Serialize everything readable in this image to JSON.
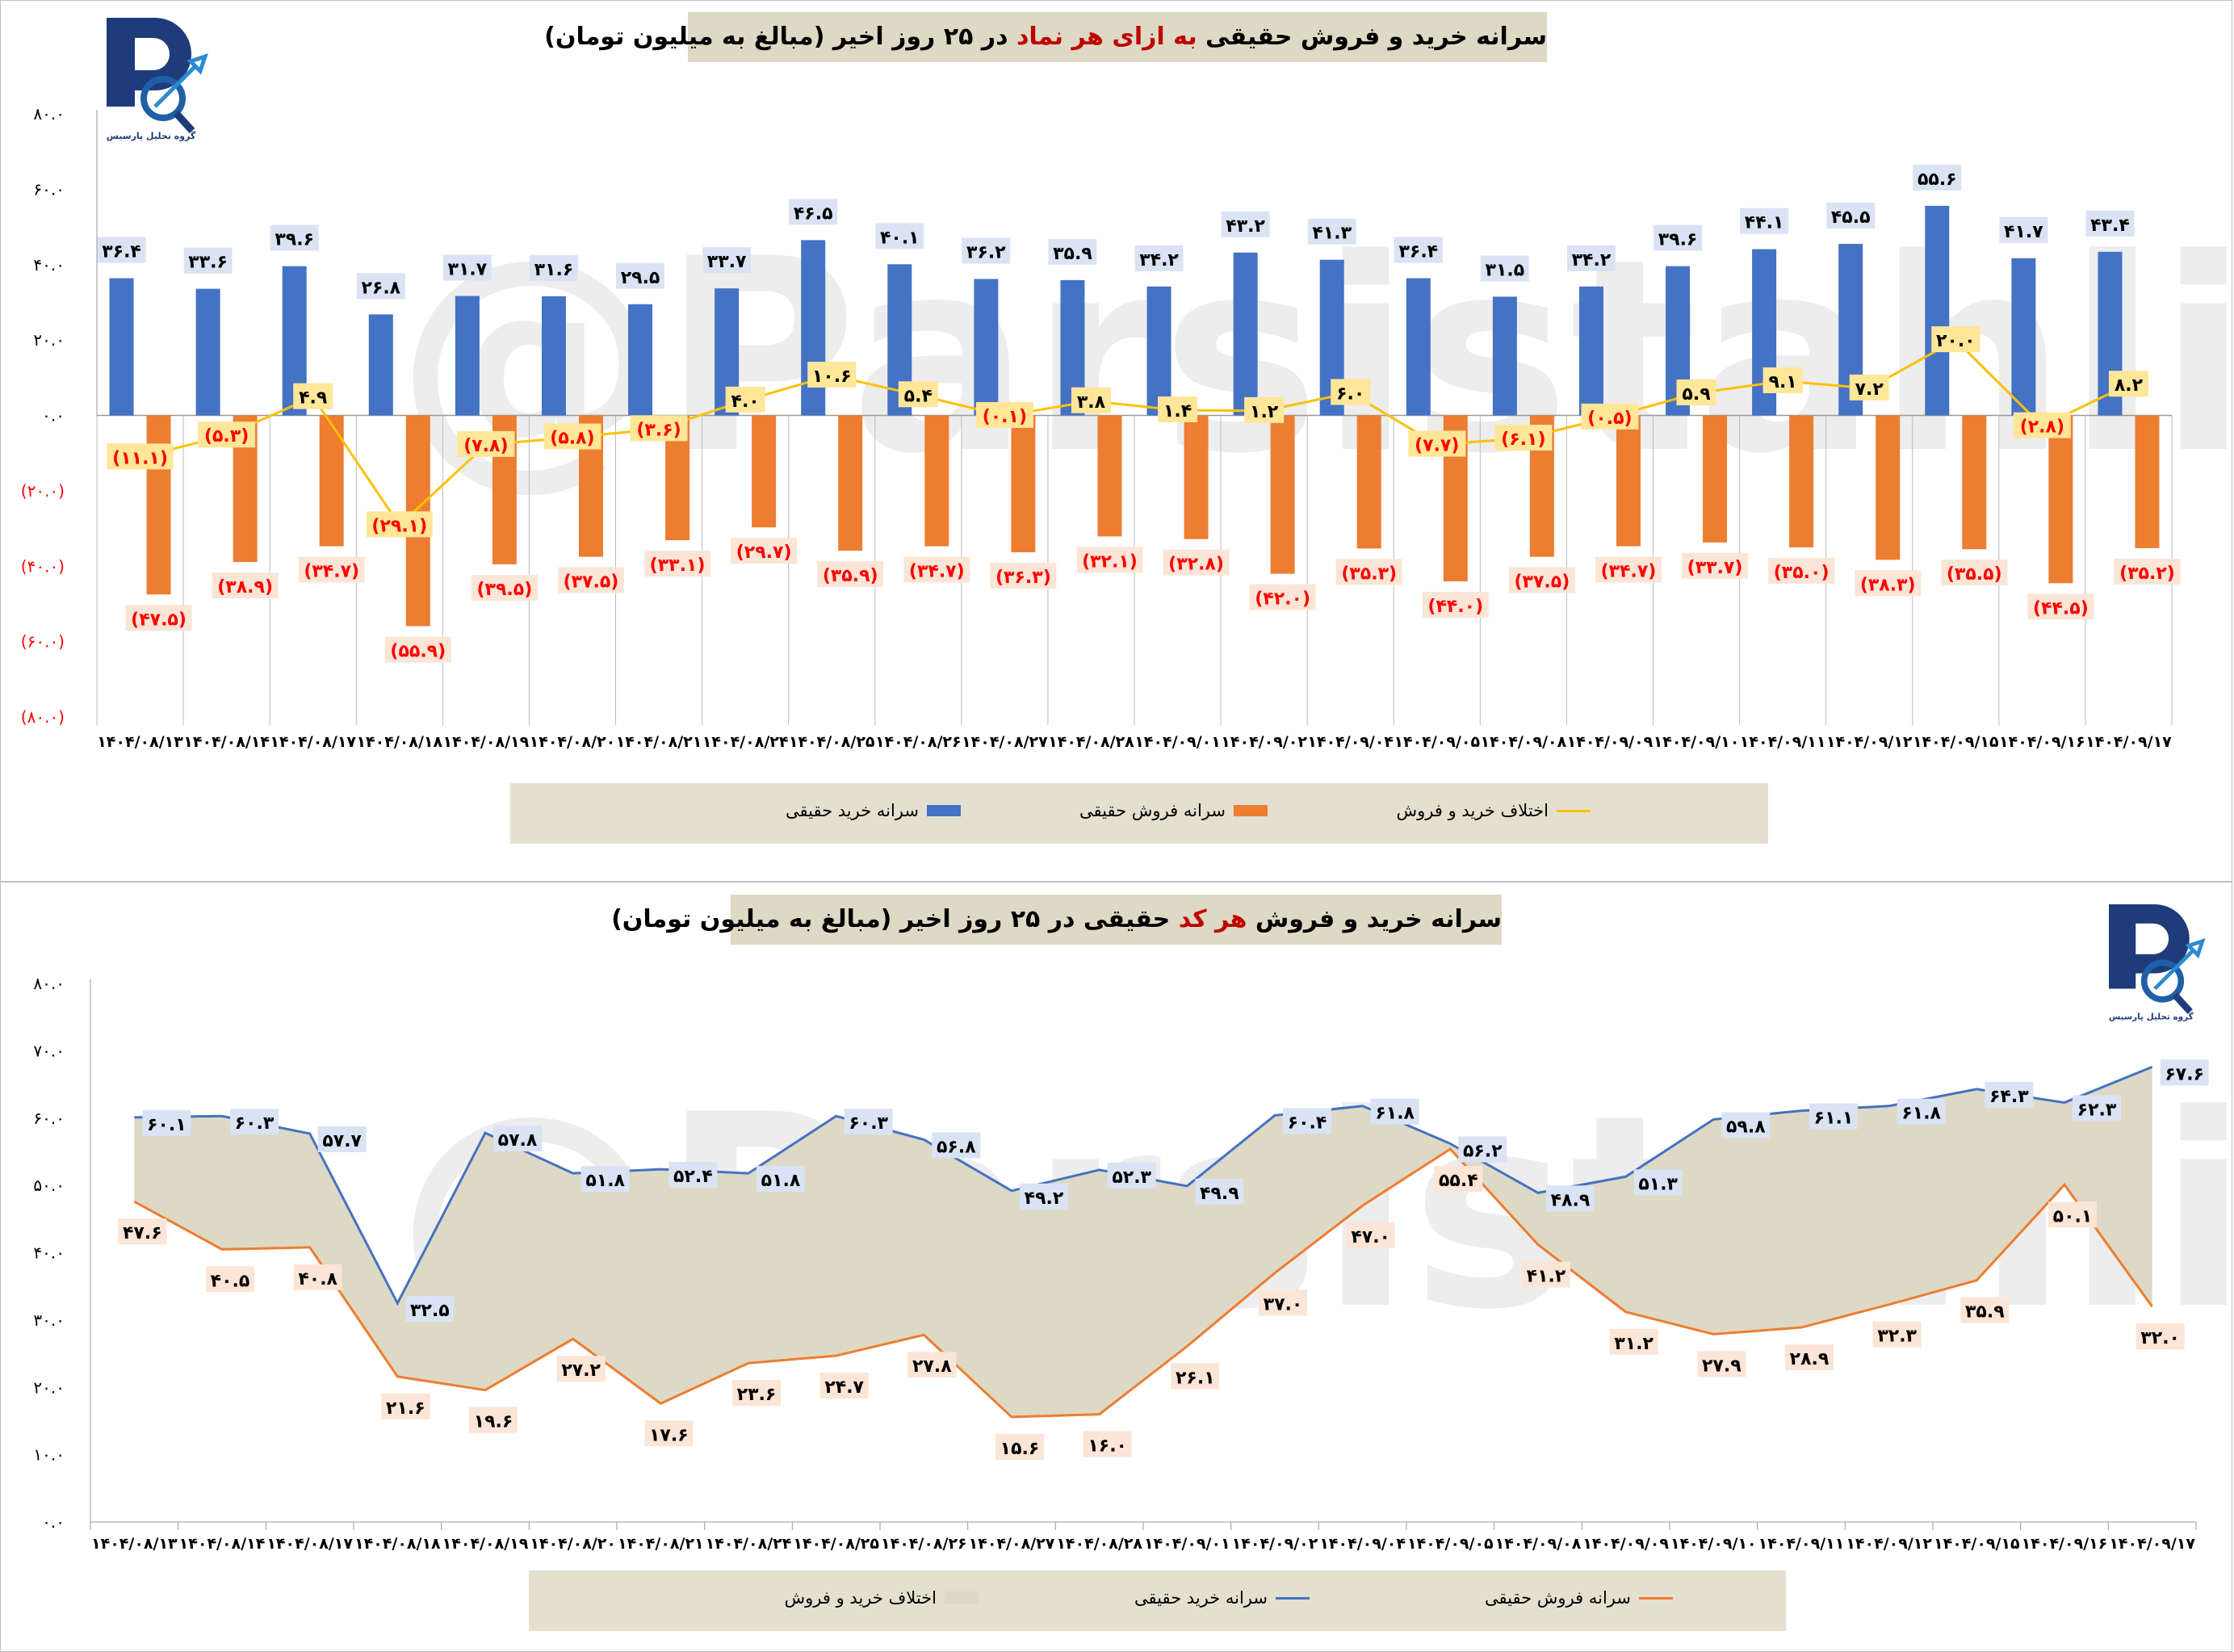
{
  "logo": {
    "text": "گروه تحلیل پارسیس",
    "watermark": "@Parsistahlil"
  },
  "colors": {
    "buy": "#4472c4",
    "sell": "#ed7d31",
    "diff": "#ffc000",
    "area": "#ddd9c4",
    "negative": "#ff0000"
  },
  "chart_data": [
    {
      "type": "bar",
      "title": {
        "pre": "سرانه خرید و فروش حقیقی ",
        "highlight": "به ازای هر نماد",
        "post": " در ۲۵ روز اخیر (مبالغ به میلیون تومان)"
      },
      "categories": [
        "۱۴۰۴/۰۸/۱۳",
        "۱۴۰۴/۰۸/۱۴",
        "۱۴۰۴/۰۸/۱۷",
        "۱۴۰۴/۰۸/۱۸",
        "۱۴۰۴/۰۸/۱۹",
        "۱۴۰۴/۰۸/۲۰",
        "۱۴۰۴/۰۸/۲۱",
        "۱۴۰۴/۰۸/۲۴",
        "۱۴۰۴/۰۸/۲۵",
        "۱۴۰۴/۰۸/۲۶",
        "۱۴۰۴/۰۸/۲۷",
        "۱۴۰۴/۰۸/۲۸",
        "۱۴۰۴/۰۹/۰۱",
        "۱۴۰۴/۰۹/۰۲",
        "۱۴۰۴/۰۹/۰۴",
        "۱۴۰۴/۰۹/۰۵",
        "۱۴۰۴/۰۹/۰۸",
        "۱۴۰۴/۰۹/۰۹",
        "۱۴۰۴/۰۹/۱۰",
        "۱۴۰۴/۰۹/۱۱",
        "۱۴۰۴/۰۹/۱۲",
        "۱۴۰۴/۰۹/۱۵",
        "۱۴۰۴/۰۹/۱۶",
        "۱۴۰۴/۰۹/۱۷"
      ],
      "series": [
        {
          "name": "سرانه خرید حقیقی",
          "kind": "bar",
          "values": [
            36.4,
            33.6,
            39.6,
            26.8,
            31.7,
            31.6,
            29.5,
            33.7,
            46.5,
            40.1,
            36.2,
            35.9,
            34.2,
            43.2,
            41.3,
            36.4,
            31.5,
            34.2,
            39.6,
            44.1,
            45.5,
            55.6,
            41.7,
            43.4
          ]
        },
        {
          "name": "سرانه فروش حقیقی",
          "kind": "bar",
          "values": [
            -47.5,
            -38.9,
            -34.7,
            -55.9,
            -39.5,
            -37.5,
            -33.1,
            -29.7,
            -35.9,
            -34.7,
            -36.3,
            -32.1,
            -32.8,
            -42.0,
            -35.3,
            -44.0,
            -37.5,
            -34.7,
            -33.7,
            -35.0,
            -38.3,
            -35.5,
            -44.5,
            -35.2
          ]
        },
        {
          "name": "اختلاف خرید و فروش",
          "kind": "line",
          "values": [
            -11.1,
            -5.3,
            4.9,
            -29.1,
            -7.8,
            -5.8,
            -3.6,
            4.0,
            10.6,
            5.4,
            -0.1,
            3.8,
            1.4,
            1.2,
            6.0,
            -7.7,
            -6.1,
            -0.5,
            5.9,
            9.1,
            7.2,
            20.0,
            -2.8,
            8.2
          ]
        }
      ],
      "ylim": [
        -80,
        80
      ],
      "ytick_step": 20,
      "grid": false,
      "legend": "bottom"
    },
    {
      "type": "area",
      "title": {
        "pre": "سرانه خرید و فروش ",
        "highlight": "هر کد",
        "post": " حقیقی در ۲۵ روز اخیر (مبالغ به میلیون تومان)"
      },
      "categories": [
        "۱۴۰۴/۰۸/۱۳",
        "۱۴۰۴/۰۸/۱۴",
        "۱۴۰۴/۰۸/۱۷",
        "۱۴۰۴/۰۸/۱۸",
        "۱۴۰۴/۰۸/۱۹",
        "۱۴۰۴/۰۸/۲۰",
        "۱۴۰۴/۰۸/۲۱",
        "۱۴۰۴/۰۸/۲۴",
        "۱۴۰۴/۰۸/۲۵",
        "۱۴۰۴/۰۸/۲۶",
        "۱۴۰۴/۰۸/۲۷",
        "۱۴۰۴/۰۸/۲۸",
        "۱۴۰۴/۰۹/۰۱",
        "۱۴۰۴/۰۹/۰۲",
        "۱۴۰۴/۰۹/۰۴",
        "۱۴۰۴/۰۹/۰۵",
        "۱۴۰۴/۰۹/۰۸",
        "۱۴۰۴/۰۹/۰۹",
        "۱۴۰۴/۰۹/۱۰",
        "۱۴۰۴/۰۹/۱۱",
        "۱۴۰۴/۰۹/۱۲",
        "۱۴۰۴/۰۹/۱۵",
        "۱۴۰۴/۰۹/۱۶",
        "۱۴۰۴/۰۹/۱۷"
      ],
      "series": [
        {
          "name": "اختلاف خرید و فروش",
          "kind": "area"
        },
        {
          "name": "سرانه خرید حقیقی",
          "kind": "line",
          "values": [
            60.1,
            60.3,
            57.7,
            32.5,
            57.8,
            51.8,
            52.4,
            51.8,
            60.3,
            56.8,
            49.2,
            52.3,
            49.9,
            60.4,
            61.8,
            56.2,
            48.9,
            51.3,
            59.8,
            61.1,
            61.8,
            64.3,
            62.3,
            67.6
          ]
        },
        {
          "name": "سرانه فروش حقیقی",
          "kind": "line",
          "values": [
            47.6,
            40.5,
            40.8,
            21.6,
            19.6,
            27.2,
            17.6,
            23.6,
            24.7,
            27.8,
            15.6,
            16.0,
            26.1,
            37.0,
            47.0,
            55.4,
            41.2,
            31.2,
            27.9,
            28.9,
            32.3,
            35.9,
            50.1,
            32.0
          ]
        }
      ],
      "ylim": [
        0,
        80
      ],
      "ytick_step": 10,
      "grid": false,
      "legend": "bottom"
    }
  ]
}
